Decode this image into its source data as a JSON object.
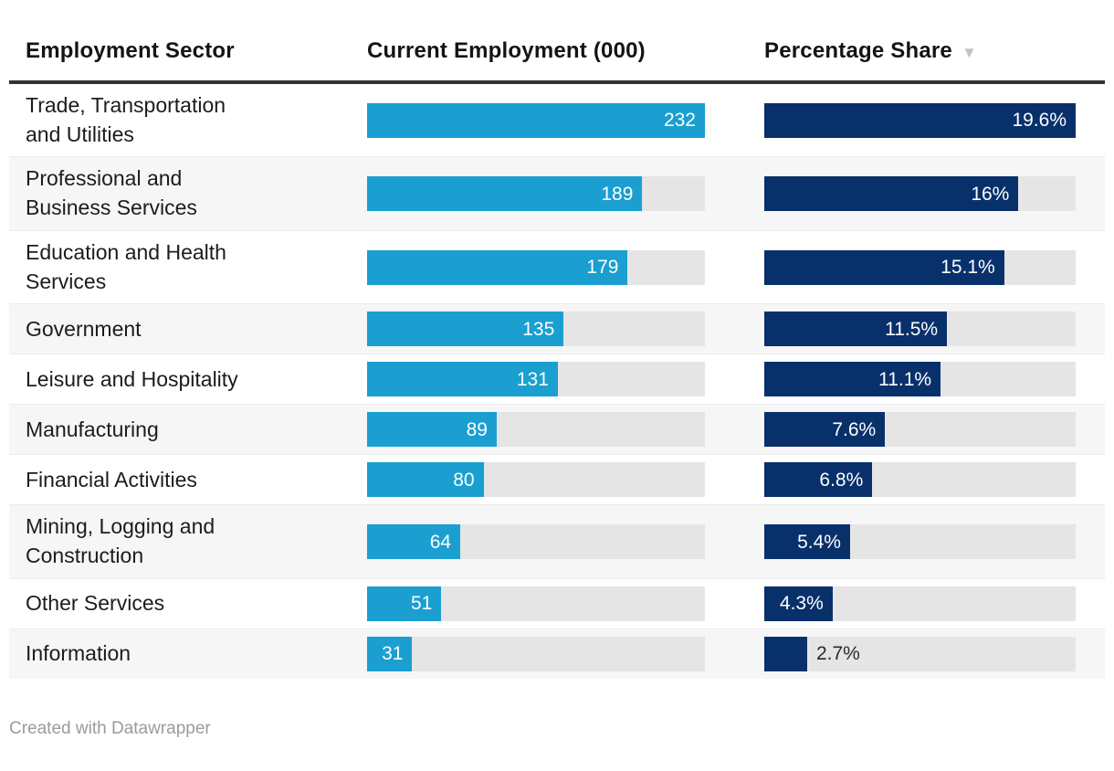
{
  "chart_data": {
    "type": "table",
    "columns": [
      "Employment Sector",
      "Current Employment (000)",
      "Percentage Share"
    ],
    "sort": {
      "column": "Percentage Share",
      "direction": "desc"
    },
    "employment_axis_max": 232,
    "share_axis_max": 19.6,
    "rows": [
      {
        "sector": "Trade, Transportation\nand Utilities",
        "employment": 232,
        "employment_label": "232",
        "share": 19.6,
        "share_label": "19.6%"
      },
      {
        "sector": "Professional and\nBusiness Services",
        "employment": 189,
        "employment_label": "189",
        "share": 16,
        "share_label": "16%"
      },
      {
        "sector": "Education and Health\nServices",
        "employment": 179,
        "employment_label": "179",
        "share": 15.1,
        "share_label": "15.1%"
      },
      {
        "sector": "Government",
        "employment": 135,
        "employment_label": "135",
        "share": 11.5,
        "share_label": "11.5%"
      },
      {
        "sector": "Leisure and Hospitality",
        "employment": 131,
        "employment_label": "131",
        "share": 11.1,
        "share_label": "11.1%"
      },
      {
        "sector": "Manufacturing",
        "employment": 89,
        "employment_label": "89",
        "share": 7.6,
        "share_label": "7.6%"
      },
      {
        "sector": "Financial Activities",
        "employment": 80,
        "employment_label": "80",
        "share": 6.8,
        "share_label": "6.8%"
      },
      {
        "sector": "Mining, Logging and\nConstruction",
        "employment": 64,
        "employment_label": "64",
        "share": 5.4,
        "share_label": "5.4%"
      },
      {
        "sector": "Other Services",
        "employment": 51,
        "employment_label": "51",
        "share": 4.3,
        "share_label": "4.3%"
      },
      {
        "sector": "Information",
        "employment": 31,
        "employment_label": "31",
        "share": 2.7,
        "share_label": "2.7%"
      }
    ],
    "colors": {
      "employment_bar": "#1a9fd0",
      "share_bar": "#08316b",
      "bar_track": "#e5e5e5",
      "row_stripe": "#f6f6f6",
      "header_rule": "#333333",
      "sort_icon": "#c4c4c4"
    },
    "legend_position": "none",
    "grid": false
  },
  "icons": {
    "sort_desc_glyph": "▼"
  },
  "footer": {
    "credit": "Created with Datawrapper"
  }
}
